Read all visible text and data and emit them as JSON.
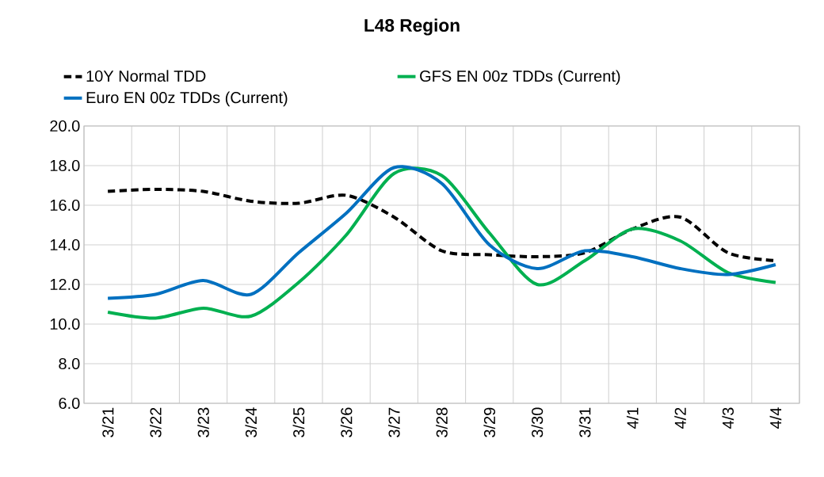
{
  "chart_data": {
    "type": "line",
    "title": "L48 Region",
    "categories": [
      "3/21",
      "3/22",
      "3/23",
      "3/24",
      "3/25",
      "3/26",
      "3/27",
      "3/28",
      "3/29",
      "3/30",
      "3/31",
      "4/1",
      "4/2",
      "4/3",
      "4/4"
    ],
    "series": [
      {
        "name": "10Y Normal TDD",
        "color": "#000000",
        "line_style": "dashed",
        "values": [
          16.7,
          16.8,
          16.7,
          16.2,
          16.1,
          16.5,
          15.4,
          13.7,
          13.5,
          13.4,
          13.6,
          14.8,
          15.4,
          13.6,
          13.2
        ]
      },
      {
        "name": "GFS EN 00z TDDs (Current)",
        "color": "#00b050",
        "line_style": "solid",
        "values": [
          10.6,
          10.3,
          10.8,
          10.4,
          12.1,
          14.5,
          17.6,
          17.5,
          14.6,
          12.0,
          13.2,
          14.8,
          14.2,
          12.6,
          12.1
        ]
      },
      {
        "name": "Euro EN 00z TDDs (Current)",
        "color": "#0070c0",
        "line_style": "solid",
        "values": [
          11.3,
          11.5,
          12.2,
          11.5,
          13.6,
          15.6,
          17.9,
          17.1,
          14.0,
          12.8,
          13.7,
          13.4,
          12.8,
          12.5,
          13.0
        ]
      }
    ],
    "ylim": [
      6,
      20
    ],
    "yticks": [
      {
        "value": 6,
        "label": "6.0"
      },
      {
        "value": 8,
        "label": "8.0"
      },
      {
        "value": 10,
        "label": "10.0"
      },
      {
        "value": 12,
        "label": "12.0"
      },
      {
        "value": 14,
        "label": "14.0"
      },
      {
        "value": 16,
        "label": "16.0"
      },
      {
        "value": 18,
        "label": "18.0"
      },
      {
        "value": 20,
        "label": "20.0"
      }
    ],
    "grid": true,
    "legend": "top"
  }
}
